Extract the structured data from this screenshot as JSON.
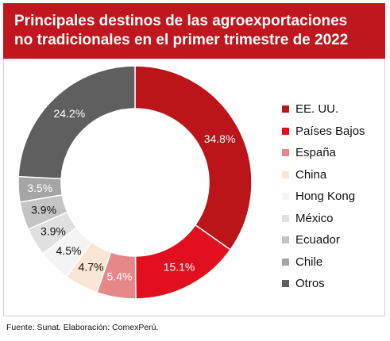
{
  "title": {
    "line1": "Principales destinos de las agroexportaciones",
    "line2": "no tradicionales en el primer trimestre de 2022"
  },
  "source": "Fuente: Sunat. Elaboración: ComexPerú.",
  "colors": {
    "header": "#c0161d",
    "slice_label_light": "#ffffff",
    "slice_label_dark": "#111111"
  },
  "chart_data": {
    "type": "pie",
    "style": "donut",
    "legend_position": "right",
    "categories": [
      "EE. UU.",
      "Países Bajos",
      "España",
      "China",
      "Hong Kong",
      "México",
      "Ecuador",
      "Chile",
      "Otros"
    ],
    "values": [
      34.8,
      15.1,
      5.4,
      4.7,
      4.5,
      3.9,
      3.9,
      3.5,
      24.2
    ],
    "labels": [
      "34.8%",
      "15.1%",
      "5.4%",
      "4.7%",
      "4.5%",
      "3.9%",
      "3.9%",
      "3.5%",
      "24.2%"
    ],
    "colors": [
      "#bb1419",
      "#e2101e",
      "#e8878a",
      "#fce5d4",
      "#f4f4f4",
      "#e0e0e0",
      "#c4c4c4",
      "#a5a5a5",
      "#5f5f5f"
    ],
    "label_colors": [
      "#ffffff",
      "#ffffff",
      "#ffffff",
      "#111111",
      "#111111",
      "#111111",
      "#111111",
      "#ffffff",
      "#ffffff"
    ]
  }
}
